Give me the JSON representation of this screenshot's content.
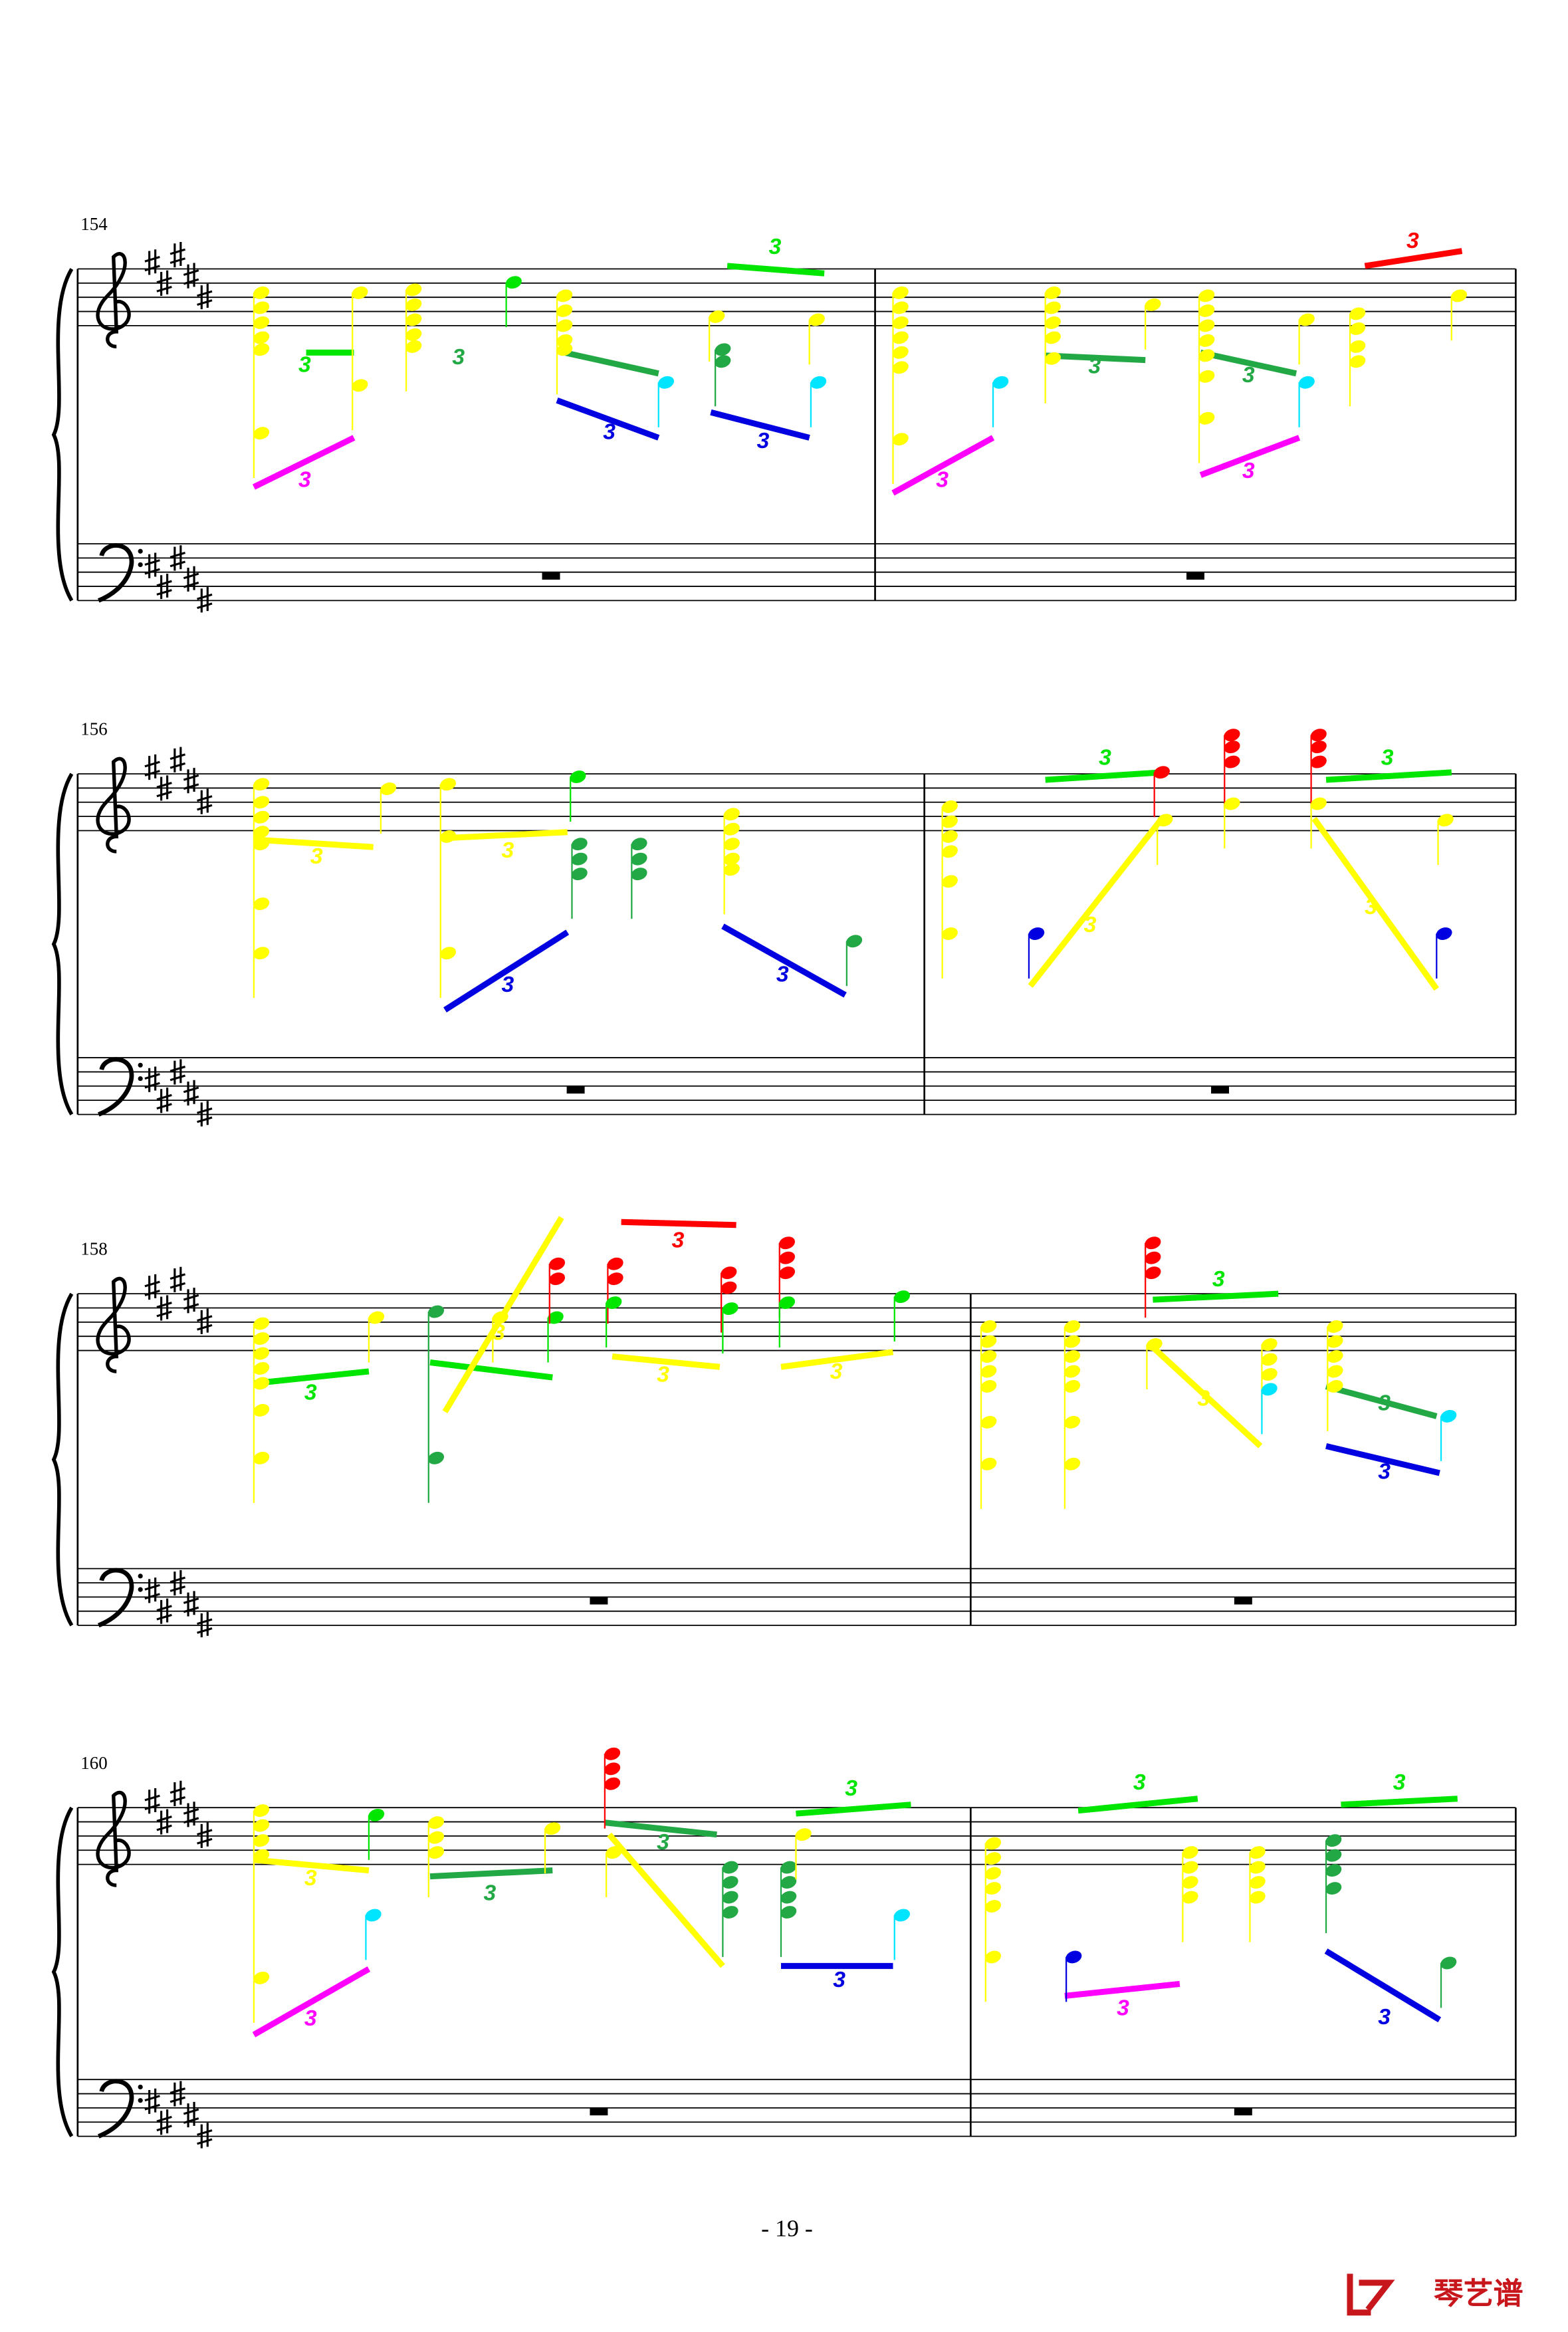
{
  "systems": [
    {
      "measure_number": "154",
      "tuplets": [
        "3",
        "3",
        "3",
        "3",
        "3",
        "3",
        "3",
        "3",
        "3",
        "3",
        "3"
      ]
    },
    {
      "measure_number": "156",
      "tuplets": [
        "3",
        "3",
        "3",
        "3",
        "3",
        "3",
        "3",
        "3"
      ]
    },
    {
      "measure_number": "158",
      "tuplets": [
        "3",
        "3",
        "3",
        "3",
        "3",
        "3",
        "3",
        "3",
        "3"
      ]
    },
    {
      "measure_number": "160",
      "tuplets": [
        "3",
        "3",
        "3",
        "3",
        "3",
        "3",
        "3",
        "3",
        "3",
        "3"
      ]
    }
  ],
  "footer": {
    "page_number": "- 19 -",
    "logo": "琴艺谱"
  }
}
